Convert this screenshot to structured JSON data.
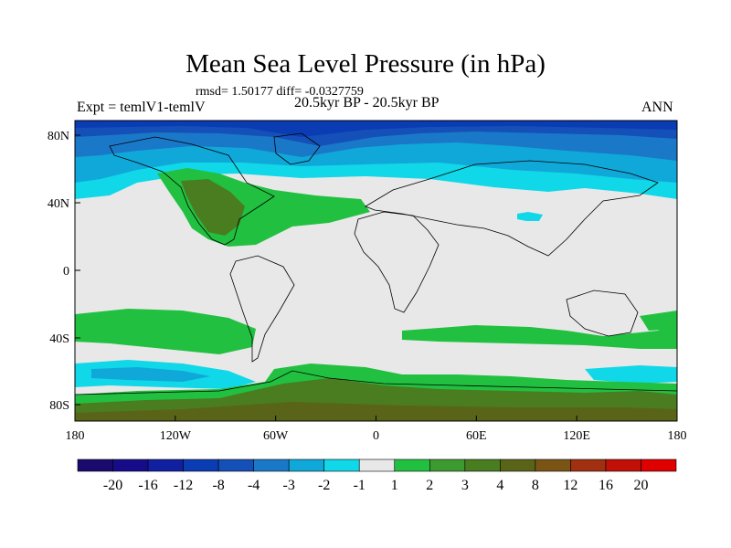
{
  "title": "Mean Sea Level Pressure (in hPa)",
  "stats": "rmsd= 1.50177 diff= -0.0327759",
  "experiment": "Expt = temlV1-temlV",
  "period": "20.5kyr BP - 20.5kyr BP",
  "season": "ANN",
  "lat_ticks": [
    "80N",
    "40N",
    "0",
    "40S",
    "80S"
  ],
  "lon_ticks": [
    "180",
    "120W",
    "60W",
    "0",
    "60E",
    "120E",
    "180"
  ],
  "colorbar": {
    "labels": [
      "-20",
      "-16",
      "-12",
      "-8",
      "-4",
      "-3",
      "-2",
      "-1",
      "1",
      "2",
      "3",
      "4",
      "8",
      "12",
      "16",
      "20"
    ],
    "colors": [
      "#1a0a6e",
      "#160c8a",
      "#1020a0",
      "#0a3cb4",
      "#1450b8",
      "#1a78c8",
      "#10a8d8",
      "#10d8e8",
      "#e8e8e8",
      "#22c040",
      "#3c9a30",
      "#4a7c20",
      "#5a6418",
      "#7a5414",
      "#a03010",
      "#c01008",
      "#e00000"
    ]
  }
}
